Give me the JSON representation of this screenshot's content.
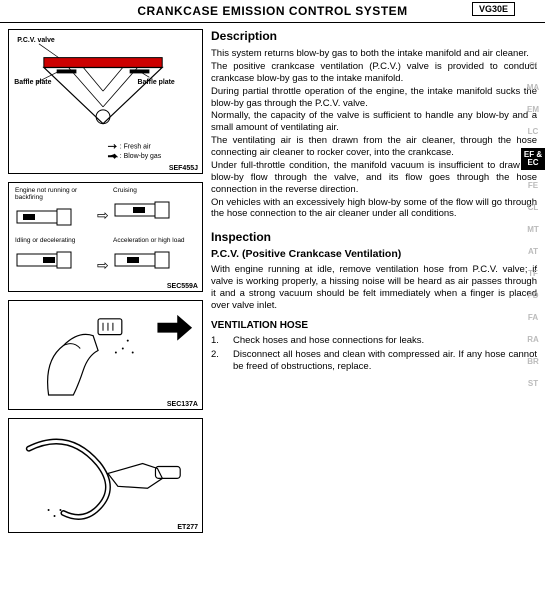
{
  "title": "CRANKCASE EMISSION CONTROL SYSTEM",
  "engine": "VG30E",
  "fig1": {
    "pcv_valve": "P.C.V. valve",
    "baffle_plate_l": "Baffle plate",
    "baffle_plate_r": "Baffle plate",
    "fresh": ": Fresh air",
    "blowby": ": Blow-by gas",
    "ref": "SEF455J"
  },
  "fig2": {
    "c1": "Engine not running or backfiring",
    "c2": "Cruising",
    "c3": "Idling or decelerating",
    "c4": "Acceleration or high load",
    "ref": "SEC559A"
  },
  "fig3": {
    "ref": "SEC137A"
  },
  "fig4": {
    "ref": "ET277"
  },
  "desc": {
    "h": "Description",
    "p1": "This system returns blow-by gas to both the intake manifold and air cleaner.",
    "p2": "The positive crankcase ventilation (P.C.V.) valve is provided to conduct crankcase blow-by gas to the intake manifold.",
    "p3": "During partial throttle operation of the engine, the intake manifold sucks the blow-by gas through the P.C.V. valve.",
    "p4": "Normally, the capacity of the valve is sufficient to handle any blow-by and a small amount of ventilating air.",
    "p5": "The ventilating air is then drawn from the air cleaner, through the hose connecting air cleaner to rocker cover, into the crankcase.",
    "p6": "Under full-throttle condition, the manifold vacuum is insufficient to draw the blow-by flow through the valve, and its flow goes through the hose connection in the reverse direction.",
    "p7": "On vehicles with an excessively high blow-by some of the flow will go through the hose connection to the air cleaner under all conditions."
  },
  "insp": {
    "h": "Inspection",
    "h3": "P.C.V. (Positive Crankcase Ventilation)",
    "p1": "With engine running at idle, remove ventilation hose from P.C.V. valve; if valve is working properly, a hissing noise will be heard as air passes through it and a strong vacuum should be felt immediately when a finger is placed over valve inlet."
  },
  "vent": {
    "h": "VENTILATION HOSE",
    "i1": "Check hoses and hose connections for leaks.",
    "i2": "Disconnect all hoses and clean with compressed air. If any hose cannot be freed of obstructions, replace."
  },
  "tabs": [
    "GI",
    "MA",
    "EM",
    "LC",
    "EF & EC",
    "FE",
    "CL",
    "MT",
    "AT",
    "TF",
    "PD",
    "FA",
    "RA",
    "BR",
    "ST"
  ],
  "active_tab": "EF & EC"
}
